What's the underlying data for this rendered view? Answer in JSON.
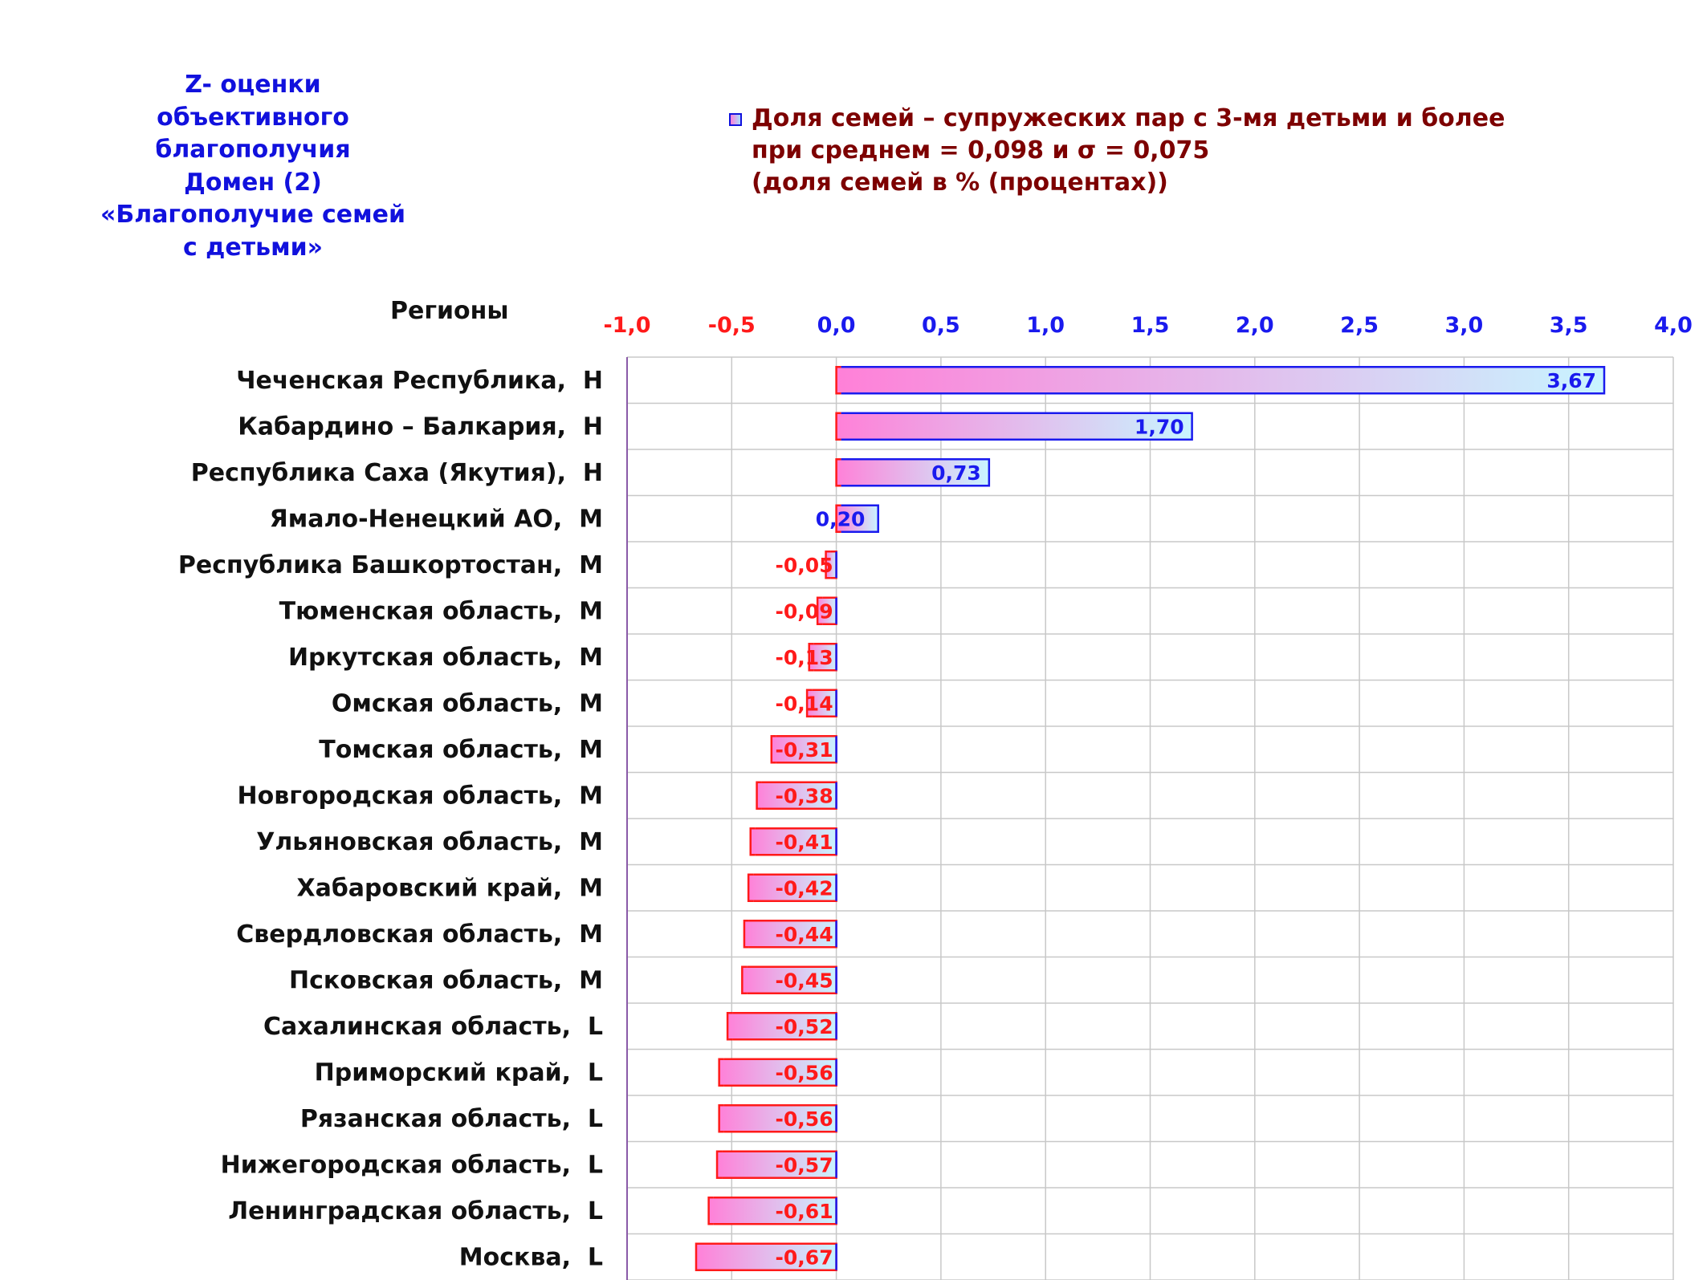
{
  "side_title": [
    "Z- оценки",
    "объективного",
    "благополучия",
    "Домен (2)",
    "«Благополучие семей",
    "с детьми»"
  ],
  "legend": {
    "lines": [
      "Доля семей – супружеских пар с 3-мя детьми и более",
      "при среднем = 0,098  и σ = 0,075",
      "(доля семей в % (процентах))"
    ]
  },
  "regions_header": "Регионы",
  "colors": {
    "negative": "#ff1a1a",
    "positive": "#1a1aee",
    "bar_start": "#ff80d8",
    "bar_end": "#c8f4ff",
    "grid": "#c8c8c8",
    "title": "#1111dd",
    "legend_text": "#7d0000"
  },
  "chart_data": {
    "type": "bar",
    "orientation": "horizontal",
    "xlim": [
      -1.0,
      4.0
    ],
    "x_ticks": [
      "-1,0",
      "-0,5",
      "0,0",
      "0,5",
      "1,0",
      "1,5",
      "2,0",
      "2,5",
      "3,0",
      "3,5",
      "4,0"
    ],
    "grid": true,
    "legend_position": "top",
    "series": [
      {
        "name": "Доля семей – супружеских пар с 3-мя детьми и более"
      }
    ],
    "categories": [
      "Чеченская Республика,  H",
      "Кабардино – Балкария,  H",
      "Республика Саха (Якутия),  H",
      "Ямало-Ненецкий АО,  M",
      "Республика Башкортостан,  M",
      "Тюменская область,  M",
      "Иркутская область,  M",
      "Омская область,  M",
      "Томская область,  M",
      "Новгородская область,  M",
      "Ульяновская область,  M",
      "Хабаровский край,  M",
      "Свердловская область,  M",
      "Псковская область,  M",
      "Сахалинская область,  L",
      "Приморский край,  L",
      "Рязанская область,  L",
      "Нижегородская область,  L",
      "Ленинградская область,  L",
      "Москва,  L"
    ],
    "values": [
      3.67,
      1.7,
      0.73,
      0.2,
      -0.05,
      -0.09,
      -0.13,
      -0.14,
      -0.31,
      -0.38,
      -0.41,
      -0.42,
      -0.44,
      -0.45,
      -0.52,
      -0.56,
      -0.56,
      -0.57,
      -0.61,
      -0.67
    ],
    "value_labels": [
      "3,67",
      "1,70",
      "0,73",
      "0,20",
      "-0,05",
      "-0,09",
      "-0,13",
      "-0,14",
      "-0,31",
      "-0,38",
      "-0,41",
      "-0,42",
      "-0,44",
      "-0,45",
      "-0,52",
      "-0,56",
      "-0,56",
      "-0,57",
      "-0,61",
      "-0,67"
    ]
  }
}
